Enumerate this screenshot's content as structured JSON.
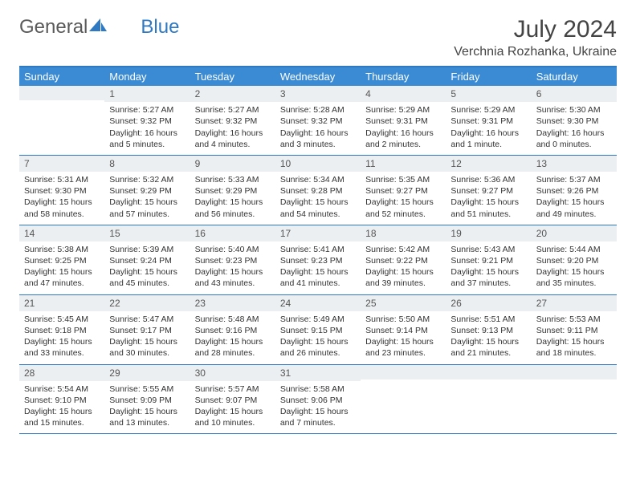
{
  "logo": {
    "text1": "General",
    "text2": "Blue"
  },
  "title": "July 2024",
  "location": "Verchnia Rozhanka, Ukraine",
  "weekdays": [
    "Sunday",
    "Monday",
    "Tuesday",
    "Wednesday",
    "Thursday",
    "Friday",
    "Saturday"
  ],
  "colors": {
    "header_bg": "#3b8bd4",
    "accent": "#2f79c2",
    "daynum_bg": "#eceff1",
    "text": "#333333"
  },
  "fonts": {
    "body_size": 10.5,
    "title_size": 30,
    "location_size": 16,
    "weekday_size": 13,
    "daynum_size": 12
  },
  "weeks": [
    [
      {},
      {
        "n": "1",
        "sr": "Sunrise: 5:27 AM",
        "ss": "Sunset: 9:32 PM",
        "d1": "Daylight: 16 hours",
        "d2": "and 5 minutes."
      },
      {
        "n": "2",
        "sr": "Sunrise: 5:27 AM",
        "ss": "Sunset: 9:32 PM",
        "d1": "Daylight: 16 hours",
        "d2": "and 4 minutes."
      },
      {
        "n": "3",
        "sr": "Sunrise: 5:28 AM",
        "ss": "Sunset: 9:32 PM",
        "d1": "Daylight: 16 hours",
        "d2": "and 3 minutes."
      },
      {
        "n": "4",
        "sr": "Sunrise: 5:29 AM",
        "ss": "Sunset: 9:31 PM",
        "d1": "Daylight: 16 hours",
        "d2": "and 2 minutes."
      },
      {
        "n": "5",
        "sr": "Sunrise: 5:29 AM",
        "ss": "Sunset: 9:31 PM",
        "d1": "Daylight: 16 hours",
        "d2": "and 1 minute."
      },
      {
        "n": "6",
        "sr": "Sunrise: 5:30 AM",
        "ss": "Sunset: 9:30 PM",
        "d1": "Daylight: 16 hours",
        "d2": "and 0 minutes."
      }
    ],
    [
      {
        "n": "7",
        "sr": "Sunrise: 5:31 AM",
        "ss": "Sunset: 9:30 PM",
        "d1": "Daylight: 15 hours",
        "d2": "and 58 minutes."
      },
      {
        "n": "8",
        "sr": "Sunrise: 5:32 AM",
        "ss": "Sunset: 9:29 PM",
        "d1": "Daylight: 15 hours",
        "d2": "and 57 minutes."
      },
      {
        "n": "9",
        "sr": "Sunrise: 5:33 AM",
        "ss": "Sunset: 9:29 PM",
        "d1": "Daylight: 15 hours",
        "d2": "and 56 minutes."
      },
      {
        "n": "10",
        "sr": "Sunrise: 5:34 AM",
        "ss": "Sunset: 9:28 PM",
        "d1": "Daylight: 15 hours",
        "d2": "and 54 minutes."
      },
      {
        "n": "11",
        "sr": "Sunrise: 5:35 AM",
        "ss": "Sunset: 9:27 PM",
        "d1": "Daylight: 15 hours",
        "d2": "and 52 minutes."
      },
      {
        "n": "12",
        "sr": "Sunrise: 5:36 AM",
        "ss": "Sunset: 9:27 PM",
        "d1": "Daylight: 15 hours",
        "d2": "and 51 minutes."
      },
      {
        "n": "13",
        "sr": "Sunrise: 5:37 AM",
        "ss": "Sunset: 9:26 PM",
        "d1": "Daylight: 15 hours",
        "d2": "and 49 minutes."
      }
    ],
    [
      {
        "n": "14",
        "sr": "Sunrise: 5:38 AM",
        "ss": "Sunset: 9:25 PM",
        "d1": "Daylight: 15 hours",
        "d2": "and 47 minutes."
      },
      {
        "n": "15",
        "sr": "Sunrise: 5:39 AM",
        "ss": "Sunset: 9:24 PM",
        "d1": "Daylight: 15 hours",
        "d2": "and 45 minutes."
      },
      {
        "n": "16",
        "sr": "Sunrise: 5:40 AM",
        "ss": "Sunset: 9:23 PM",
        "d1": "Daylight: 15 hours",
        "d2": "and 43 minutes."
      },
      {
        "n": "17",
        "sr": "Sunrise: 5:41 AM",
        "ss": "Sunset: 9:23 PM",
        "d1": "Daylight: 15 hours",
        "d2": "and 41 minutes."
      },
      {
        "n": "18",
        "sr": "Sunrise: 5:42 AM",
        "ss": "Sunset: 9:22 PM",
        "d1": "Daylight: 15 hours",
        "d2": "and 39 minutes."
      },
      {
        "n": "19",
        "sr": "Sunrise: 5:43 AM",
        "ss": "Sunset: 9:21 PM",
        "d1": "Daylight: 15 hours",
        "d2": "and 37 minutes."
      },
      {
        "n": "20",
        "sr": "Sunrise: 5:44 AM",
        "ss": "Sunset: 9:20 PM",
        "d1": "Daylight: 15 hours",
        "d2": "and 35 minutes."
      }
    ],
    [
      {
        "n": "21",
        "sr": "Sunrise: 5:45 AM",
        "ss": "Sunset: 9:18 PM",
        "d1": "Daylight: 15 hours",
        "d2": "and 33 minutes."
      },
      {
        "n": "22",
        "sr": "Sunrise: 5:47 AM",
        "ss": "Sunset: 9:17 PM",
        "d1": "Daylight: 15 hours",
        "d2": "and 30 minutes."
      },
      {
        "n": "23",
        "sr": "Sunrise: 5:48 AM",
        "ss": "Sunset: 9:16 PM",
        "d1": "Daylight: 15 hours",
        "d2": "and 28 minutes."
      },
      {
        "n": "24",
        "sr": "Sunrise: 5:49 AM",
        "ss": "Sunset: 9:15 PM",
        "d1": "Daylight: 15 hours",
        "d2": "and 26 minutes."
      },
      {
        "n": "25",
        "sr": "Sunrise: 5:50 AM",
        "ss": "Sunset: 9:14 PM",
        "d1": "Daylight: 15 hours",
        "d2": "and 23 minutes."
      },
      {
        "n": "26",
        "sr": "Sunrise: 5:51 AM",
        "ss": "Sunset: 9:13 PM",
        "d1": "Daylight: 15 hours",
        "d2": "and 21 minutes."
      },
      {
        "n": "27",
        "sr": "Sunrise: 5:53 AM",
        "ss": "Sunset: 9:11 PM",
        "d1": "Daylight: 15 hours",
        "d2": "and 18 minutes."
      }
    ],
    [
      {
        "n": "28",
        "sr": "Sunrise: 5:54 AM",
        "ss": "Sunset: 9:10 PM",
        "d1": "Daylight: 15 hours",
        "d2": "and 15 minutes."
      },
      {
        "n": "29",
        "sr": "Sunrise: 5:55 AM",
        "ss": "Sunset: 9:09 PM",
        "d1": "Daylight: 15 hours",
        "d2": "and 13 minutes."
      },
      {
        "n": "30",
        "sr": "Sunrise: 5:57 AM",
        "ss": "Sunset: 9:07 PM",
        "d1": "Daylight: 15 hours",
        "d2": "and 10 minutes."
      },
      {
        "n": "31",
        "sr": "Sunrise: 5:58 AM",
        "ss": "Sunset: 9:06 PM",
        "d1": "Daylight: 15 hours",
        "d2": "and 7 minutes."
      },
      {},
      {},
      {}
    ]
  ]
}
